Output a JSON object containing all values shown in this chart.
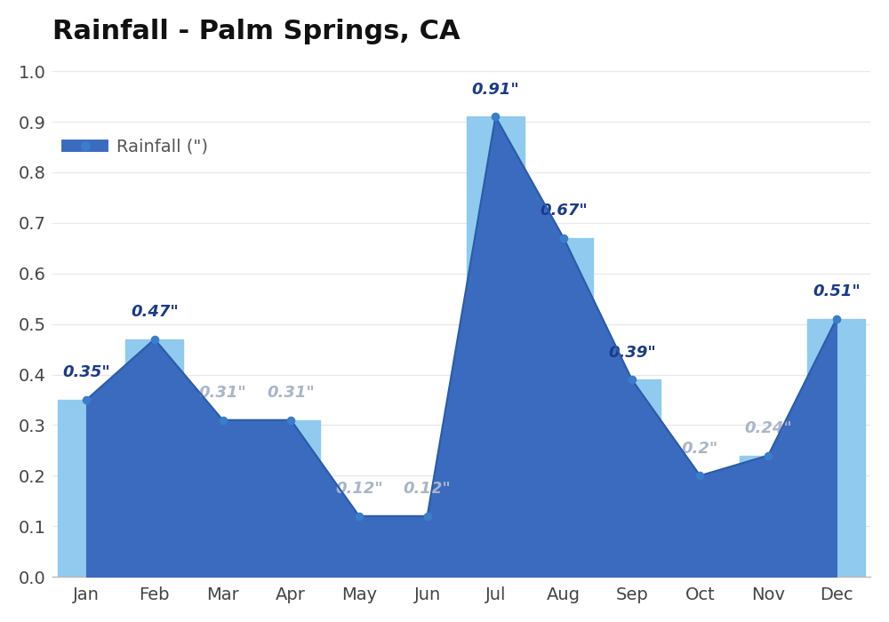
{
  "title": "Rainfall - Palm Springs, CA",
  "legend_label": "Rainfall (\")",
  "months": [
    "Jan",
    "Feb",
    "Mar",
    "Apr",
    "May",
    "Jun",
    "Jul",
    "Aug",
    "Sep",
    "Oct",
    "Nov",
    "Dec"
  ],
  "values": [
    0.35,
    0.47,
    0.31,
    0.31,
    0.12,
    0.12,
    0.91,
    0.67,
    0.39,
    0.2,
    0.24,
    0.51
  ],
  "ylim": [
    0.0,
    1.0
  ],
  "yticks": [
    0.0,
    0.1,
    0.2,
    0.3,
    0.4,
    0.5,
    0.6,
    0.7,
    0.8,
    0.9,
    1.0
  ],
  "line_color": "#2a5caa",
  "fill_color_dark": "#3a6bbf",
  "fill_color_light": "#90caee",
  "marker_color": "#3a7dca",
  "background_color": "#ffffff",
  "grid_color": "#e8e8e8",
  "title_fontsize": 22,
  "legend_fontsize": 14,
  "tick_fontsize": 14,
  "annotation_fontsize": 13
}
